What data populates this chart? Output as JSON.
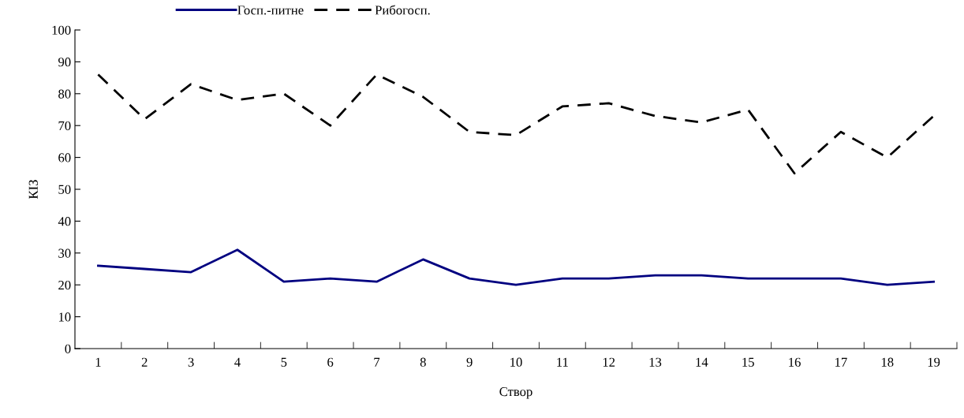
{
  "chart_data": {
    "type": "line",
    "xlabel": "Створ",
    "ylabel": "КІЗ",
    "categories": [
      "1",
      "2",
      "3",
      "4",
      "5",
      "6",
      "7",
      "8",
      "9",
      "10",
      "11",
      "12",
      "13",
      "14",
      "15",
      "16",
      "17",
      "18",
      "19"
    ],
    "series": [
      {
        "name": "Госп.-питне",
        "color": "#000080",
        "line_style": "solid",
        "values": [
          26,
          25,
          24,
          31,
          21,
          22,
          21,
          28,
          22,
          20,
          22,
          22,
          23,
          23,
          22,
          22,
          22,
          20,
          21
        ]
      },
      {
        "name": "Рибогосп.",
        "color": "#000000",
        "line_style": "dashed",
        "values": [
          86,
          72,
          83,
          78,
          80,
          70,
          86,
          79,
          68,
          67,
          76,
          77,
          73,
          71,
          75,
          55,
          68,
          60,
          73
        ]
      }
    ],
    "ylim": [
      0,
      100
    ],
    "yticks": [
      0,
      10,
      20,
      30,
      40,
      50,
      60,
      70,
      80,
      90,
      100
    ],
    "grid": false,
    "legend": "top",
    "marker": "none"
  }
}
